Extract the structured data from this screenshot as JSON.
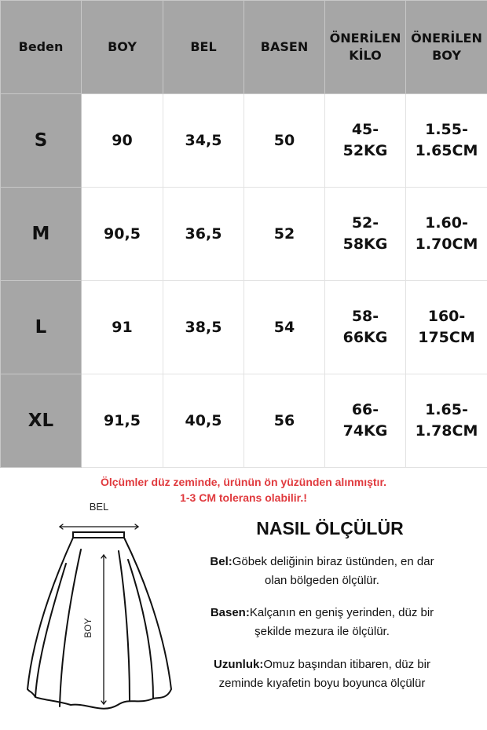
{
  "table": {
    "headers": [
      "Beden",
      "BOY",
      "BEL",
      "BASEN",
      "ÖNERİLEN KİLO",
      "ÖNERİLEN BOY"
    ],
    "rows": [
      {
        "size": "S",
        "boy": "90",
        "bel": "34,5",
        "basen": "50",
        "kilo": "45-52KG",
        "onerilen_boy": "1.55-1.65CM"
      },
      {
        "size": "M",
        "boy": "90,5",
        "bel": "36,5",
        "basen": "52",
        "kilo": "52-58KG",
        "onerilen_boy": "1.60-1.70CM"
      },
      {
        "size": "L",
        "boy": "91",
        "bel": "38,5",
        "basen": "54",
        "kilo": "58-66KG",
        "onerilen_boy": "160-175CM"
      },
      {
        "size": "XL",
        "boy": "91,5",
        "bel": "40,5",
        "basen": "56",
        "kilo": "66-74KG",
        "onerilen_boy": "1.65-1.78CM"
      }
    ],
    "header_color": "#a6a6a6"
  },
  "note": {
    "line1": "Ölçümler düz zeminde, ürünün ön yüzünden alınmıştır.",
    "line2": "1-3 CM tolerans olabilir.!",
    "color": "#e03a3e"
  },
  "diagram": {
    "waist_label": "BEL",
    "length_label": "BOY"
  },
  "howto": {
    "title": "NASIL ÖLÇÜLÜR",
    "items": [
      {
        "label": "Bel:",
        "text": "Göbek deliğinin biraz üstünden, en dar olan bölgeden ölçülür."
      },
      {
        "label": "Basen:",
        "text": "Kalçanın en geniş yerinden, düz bir şekilde mezura ile ölçülür."
      },
      {
        "label": "Uzunluk:",
        "text": "Omuz başından itibaren, düz bir zeminde kıyafetin boyu boyunca ölçülür"
      }
    ]
  }
}
